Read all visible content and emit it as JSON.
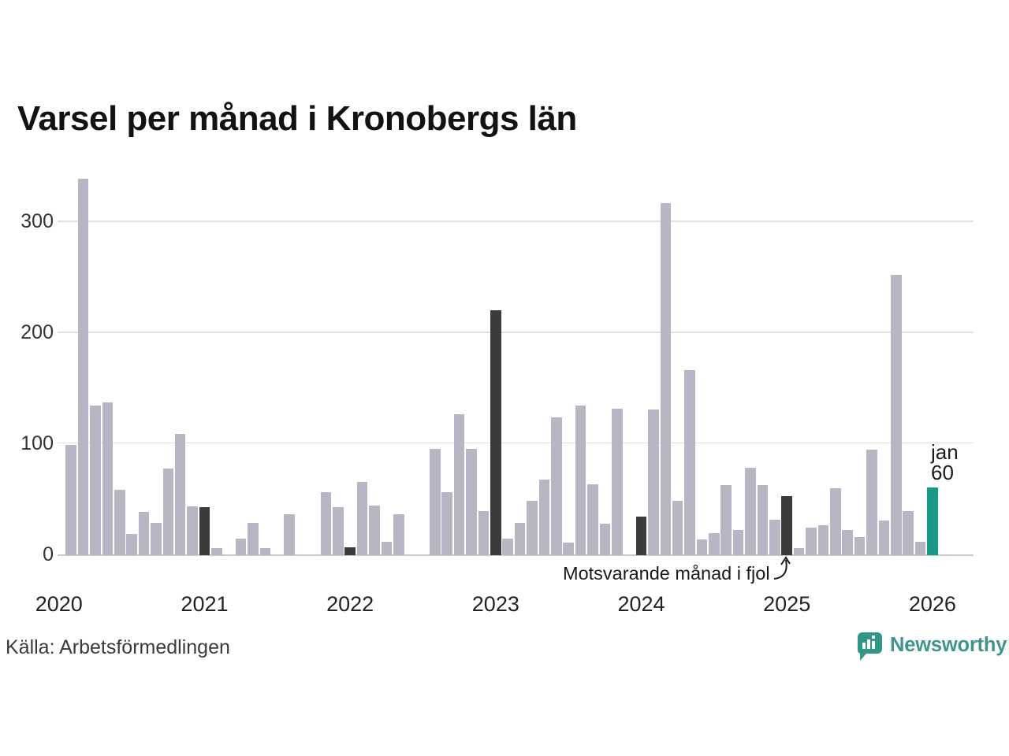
{
  "title": "Varsel per månad i Kronobergs län",
  "source": "Källa: Arbetsförmedlingen",
  "annotation": {
    "text": "Motsvarande månad i fjol",
    "points_to": "2025-01"
  },
  "latest_label": {
    "month": "jan",
    "value": "60"
  },
  "brand": {
    "name": "Newsworthy"
  },
  "colors": {
    "bar": "#b8b5c4",
    "bar_fjol": "#3b3b3b",
    "bar_latest": "#189a88",
    "grid": "#e0e0e0",
    "axis": "#c9c9c9",
    "tick_text": "#333333",
    "text": "#1a1a1a",
    "brand": "#3e968b"
  },
  "chart_data": {
    "type": "bar",
    "title": "Varsel per månad i Kronobergs län",
    "xlabel": "",
    "ylabel": "",
    "ylim": [
      0,
      345
    ],
    "yticks": [
      0,
      100,
      200,
      300
    ],
    "grid": "horizontal",
    "x_year_labels": [
      "2020",
      "2021",
      "2022",
      "2023",
      "2024",
      "2025",
      "2026"
    ],
    "highlight_meaning": "Motsvarande månad i fjol",
    "latest_point": {
      "label": "jan",
      "value": 60
    },
    "months": [
      [
        "2020-01",
        0,
        ""
      ],
      [
        "2020-02",
        98,
        ""
      ],
      [
        "2020-03",
        338,
        ""
      ],
      [
        "2020-04",
        134,
        ""
      ],
      [
        "2020-05",
        137,
        ""
      ],
      [
        "2020-06",
        58,
        ""
      ],
      [
        "2020-07",
        18,
        ""
      ],
      [
        "2020-08",
        38,
        ""
      ],
      [
        "2020-09",
        28,
        ""
      ],
      [
        "2020-10",
        77,
        ""
      ],
      [
        "2020-11",
        108,
        ""
      ],
      [
        "2020-12",
        43,
        ""
      ],
      [
        "2021-01",
        42,
        "fjol"
      ],
      [
        "2021-02",
        5,
        ""
      ],
      [
        "2021-03",
        0,
        ""
      ],
      [
        "2021-04",
        14,
        ""
      ],
      [
        "2021-05",
        28,
        ""
      ],
      [
        "2021-06",
        5,
        ""
      ],
      [
        "2021-07",
        0,
        ""
      ],
      [
        "2021-08",
        36,
        ""
      ],
      [
        "2021-09",
        0,
        ""
      ],
      [
        "2021-10",
        0,
        ""
      ],
      [
        "2021-11",
        56,
        ""
      ],
      [
        "2021-12",
        42,
        ""
      ],
      [
        "2022-01",
        6,
        "fjol"
      ],
      [
        "2022-02",
        65,
        ""
      ],
      [
        "2022-03",
        44,
        ""
      ],
      [
        "2022-04",
        11,
        ""
      ],
      [
        "2022-05",
        36,
        ""
      ],
      [
        "2022-06",
        0,
        ""
      ],
      [
        "2022-07",
        0,
        ""
      ],
      [
        "2022-08",
        95,
        ""
      ],
      [
        "2022-09",
        56,
        ""
      ],
      [
        "2022-10",
        126,
        ""
      ],
      [
        "2022-11",
        95,
        ""
      ],
      [
        "2022-12",
        39,
        ""
      ],
      [
        "2023-01",
        220,
        "fjol"
      ],
      [
        "2023-02",
        14,
        ""
      ],
      [
        "2023-03",
        28,
        ""
      ],
      [
        "2023-04",
        48,
        ""
      ],
      [
        "2023-05",
        67,
        ""
      ],
      [
        "2023-06",
        123,
        ""
      ],
      [
        "2023-07",
        10,
        ""
      ],
      [
        "2023-08",
        134,
        ""
      ],
      [
        "2023-09",
        63,
        ""
      ],
      [
        "2023-10",
        27,
        ""
      ],
      [
        "2023-11",
        131,
        ""
      ],
      [
        "2023-12",
        0,
        ""
      ],
      [
        "2024-01",
        34,
        "fjol"
      ],
      [
        "2024-02",
        130,
        ""
      ],
      [
        "2024-03",
        316,
        ""
      ],
      [
        "2024-04",
        48,
        ""
      ],
      [
        "2024-05",
        166,
        ""
      ],
      [
        "2024-06",
        13,
        ""
      ],
      [
        "2024-07",
        19,
        ""
      ],
      [
        "2024-08",
        62,
        ""
      ],
      [
        "2024-09",
        22,
        ""
      ],
      [
        "2024-10",
        78,
        ""
      ],
      [
        "2024-11",
        62,
        ""
      ],
      [
        "2024-12",
        31,
        ""
      ],
      [
        "2025-01",
        52,
        "fjol"
      ],
      [
        "2025-02",
        5,
        ""
      ],
      [
        "2025-03",
        24,
        ""
      ],
      [
        "2025-04",
        26,
        ""
      ],
      [
        "2025-05",
        59,
        ""
      ],
      [
        "2025-06",
        22,
        ""
      ],
      [
        "2025-07",
        15,
        ""
      ],
      [
        "2025-08",
        94,
        ""
      ],
      [
        "2025-09",
        30,
        ""
      ],
      [
        "2025-10",
        252,
        ""
      ],
      [
        "2025-11",
        39,
        ""
      ],
      [
        "2025-12",
        11,
        ""
      ],
      [
        "2026-01",
        60,
        "latest"
      ]
    ]
  }
}
